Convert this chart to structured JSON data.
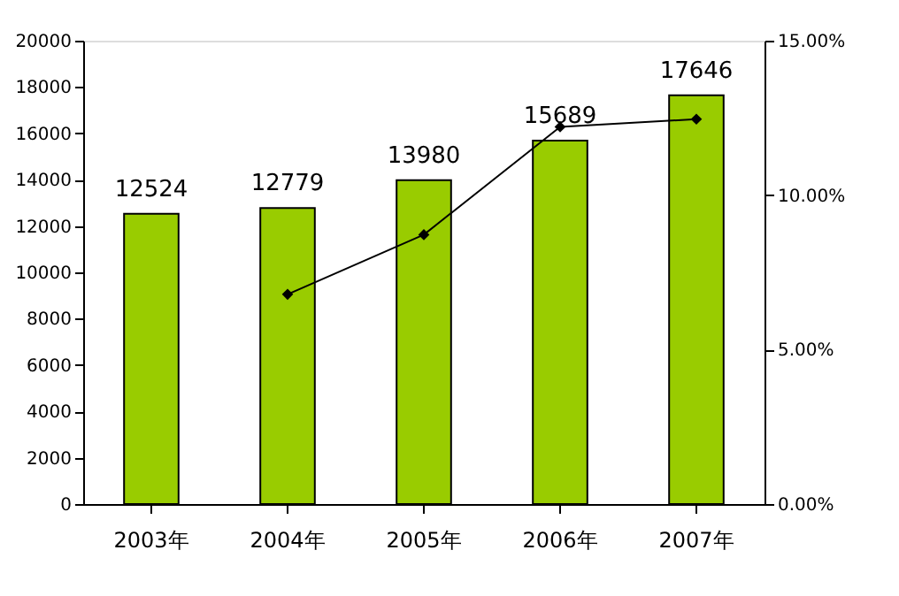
{
  "chart_data": {
    "type": "bar",
    "categories": [
      "2003年",
      "2004年",
      "2005年",
      "2006年",
      "2007年"
    ],
    "series": [
      {
        "color": "#99cc00",
        "values": [
          12524,
          12779,
          13980,
          15689,
          17646
        ],
        "value_labels": [
          "12524",
          "12779",
          "13980",
          "15689",
          "17646"
        ]
      },
      {
        "type": "line",
        "axis": "y2",
        "color": "#000000",
        "values": [
          null,
          6.79,
          8.72,
          12.21,
          12.46
        ]
      }
    ],
    "marker": "diamond",
    "line_style": "solid",
    "grid": false,
    "legend": false,
    "ylim": [
      0,
      20000
    ],
    "yticks": [
      0,
      2000,
      4000,
      6000,
      8000,
      10000,
      12000,
      14000,
      16000,
      18000,
      20000
    ],
    "y2lim": [
      0,
      15
    ],
    "y2ticks": [
      {
        "value": 0,
        "label": "0.00%"
      },
      {
        "value": 5,
        "label": "5.00%"
      },
      {
        "value": 10,
        "label": "10.00%"
      },
      {
        "value": 15,
        "label": "15.00%"
      }
    ]
  }
}
